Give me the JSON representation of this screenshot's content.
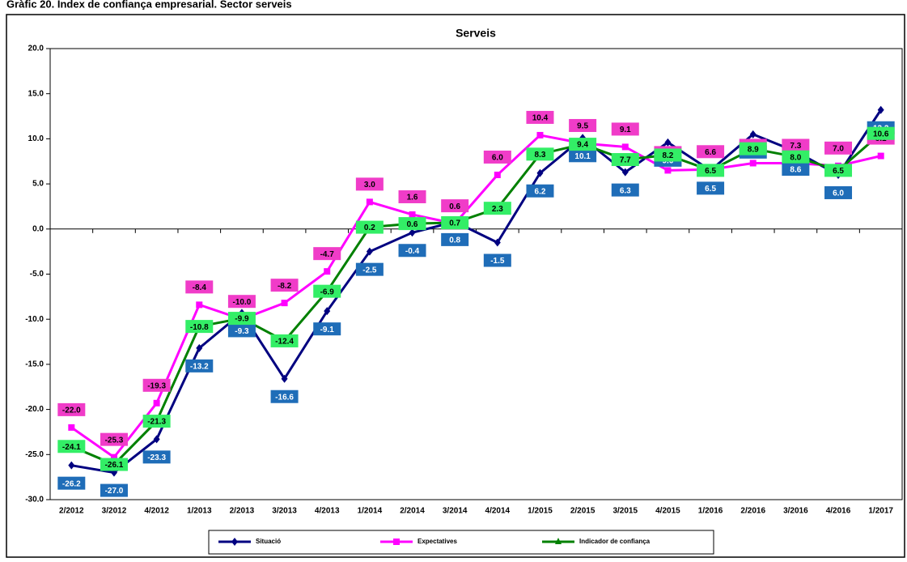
{
  "figure_title": "Gràfic 20. Índex de confiança empresarial. Sector serveis",
  "chart_data": {
    "type": "line",
    "title": "Serveis",
    "categories": [
      "2/2012",
      "3/2012",
      "4/2012",
      "1/2013",
      "2/2013",
      "3/2013",
      "4/2013",
      "1/2014",
      "2/2014",
      "3/2014",
      "4/2014",
      "1/2015",
      "2/2015",
      "3/2015",
      "4/2015",
      "1/2016",
      "2/2016",
      "3/2016",
      "4/2016",
      "1/2017"
    ],
    "series": [
      {
        "name": "Situació",
        "color": "#000080",
        "marker": "diamond",
        "label_fill": "#1F6DB8",
        "label_text": "#ffffff",
        "values": [
          -26.2,
          -27.0,
          -23.3,
          -13.2,
          -9.3,
          -16.6,
          -9.1,
          -2.5,
          -0.4,
          0.8,
          -1.5,
          6.2,
          10.1,
          6.3,
          9.6,
          6.5,
          10.5,
          8.6,
          6.0,
          13.2
        ],
        "value_labels": [
          "-26.2",
          "-27.0",
          "-23.3",
          "-13.2",
          "-9.3",
          "-16.6",
          "-9.1",
          "-2.5",
          "-0.4",
          "0.8",
          "-1.5",
          "6.2",
          "10.1",
          "6.3",
          "9.6",
          "6.5",
          "10.5",
          "8.6",
          "6.0",
          "13.2"
        ]
      },
      {
        "name": "Expectatives",
        "color": "#FF00FF",
        "marker": "square",
        "label_fill": "#F03CC8",
        "label_text": "#000000",
        "values": [
          -22.0,
          -25.3,
          -19.3,
          -8.4,
          -10.0,
          -8.2,
          -4.7,
          3.0,
          1.6,
          0.6,
          6.0,
          10.4,
          9.5,
          9.1,
          6.5,
          6.6,
          7.3,
          7.3,
          7.0,
          8.1
        ],
        "value_labels": [
          "-22.0",
          "-25.3",
          "-19.3",
          "-8.4",
          "-10.0",
          "-8.2",
          "-4.7",
          "3.0",
          "1.6",
          "0.6",
          "6.0",
          "10.4",
          "9.5",
          "9.1",
          "6.5",
          "6.6",
          "7.3",
          "7.3",
          "7.0",
          "8.1"
        ]
      },
      {
        "name": "Indicador de confiança",
        "color": "#008000",
        "marker": "triangle",
        "label_fill": "#33EE66",
        "label_text": "#000000",
        "values": [
          -24.1,
          -26.1,
          -21.3,
          -10.8,
          -9.9,
          -12.4,
          -6.9,
          0.2,
          0.6,
          0.7,
          2.3,
          8.3,
          9.4,
          7.7,
          8.2,
          6.5,
          8.9,
          8.0,
          6.5,
          10.6
        ],
        "value_labels": [
          "-24.1",
          "-26.1",
          "-21.3",
          "-10.8",
          "-9.9",
          "-12.4",
          "-6.9",
          "0.2",
          "0.6",
          "0.7",
          "2.3",
          "8.3",
          "9.4",
          "7.7",
          "8.2",
          "6.5",
          "8.9",
          "8.0",
          "6.5",
          "10.6"
        ]
      }
    ],
    "ylim": [
      -30,
      20
    ],
    "yticks": [
      {
        "value": -30,
        "label": "-30.0"
      },
      {
        "value": -25,
        "label": "-25.0"
      },
      {
        "value": -20,
        "label": "-20.0"
      },
      {
        "value": -15,
        "label": "-15.0"
      },
      {
        "value": -10,
        "label": "-10.0"
      },
      {
        "value": -5,
        "label": "-5.0"
      },
      {
        "value": 0,
        "label": "0.0"
      },
      {
        "value": 5,
        "label": "5.0"
      },
      {
        "value": 10,
        "label": "10.0"
      },
      {
        "value": 15,
        "label": "15.0"
      },
      {
        "value": 20,
        "label": "20.0"
      }
    ],
    "legend": "bottom"
  }
}
